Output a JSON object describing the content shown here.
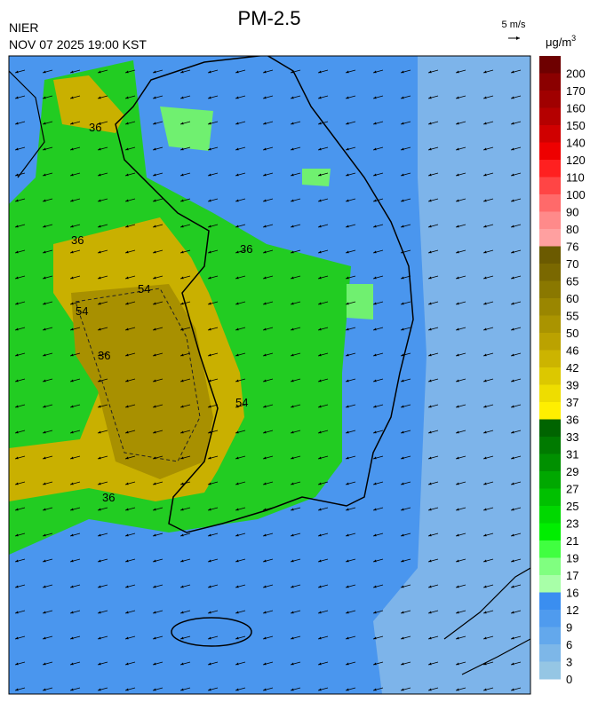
{
  "header": {
    "agency": "NIER",
    "title": "PM-2.5",
    "timestamp": "NOV 07 2025 19:00 KST"
  },
  "wind_legend": {
    "label": "5 m/s"
  },
  "colorbar": {
    "unit": "μg/m",
    "unit_power": "3",
    "levels": [
      200,
      170,
      160,
      150,
      140,
      120,
      110,
      100,
      90,
      80,
      76,
      70,
      65,
      60,
      55,
      50,
      46,
      42,
      39,
      37,
      36,
      33,
      31,
      29,
      27,
      25,
      23,
      21,
      19,
      17,
      16,
      12,
      9,
      6,
      3,
      0
    ],
    "colors": [
      "#6e0000",
      "#8b0000",
      "#a00000",
      "#b50000",
      "#d00000",
      "#ee0000",
      "#ff2020",
      "#ff4545",
      "#ff6a6a",
      "#ff8a8a",
      "#ffa0a0",
      "#6b5a00",
      "#7a6800",
      "#8a7800",
      "#9a8600",
      "#aa9400",
      "#bba200",
      "#ccb400",
      "#dcc800",
      "#eedd00",
      "#ffef00",
      "#006400",
      "#007a00",
      "#009000",
      "#00a800",
      "#00c000",
      "#00d800",
      "#00ee00",
      "#40ff40",
      "#80ff80",
      "#a8ffa8",
      "#3a8ef0",
      "#4f9bee",
      "#63a8ec",
      "#7db7e8",
      "#95c6e4"
    ]
  },
  "contour_labels": [
    "36",
    "36",
    "54",
    "54",
    "36",
    "54",
    "36",
    "36"
  ]
}
